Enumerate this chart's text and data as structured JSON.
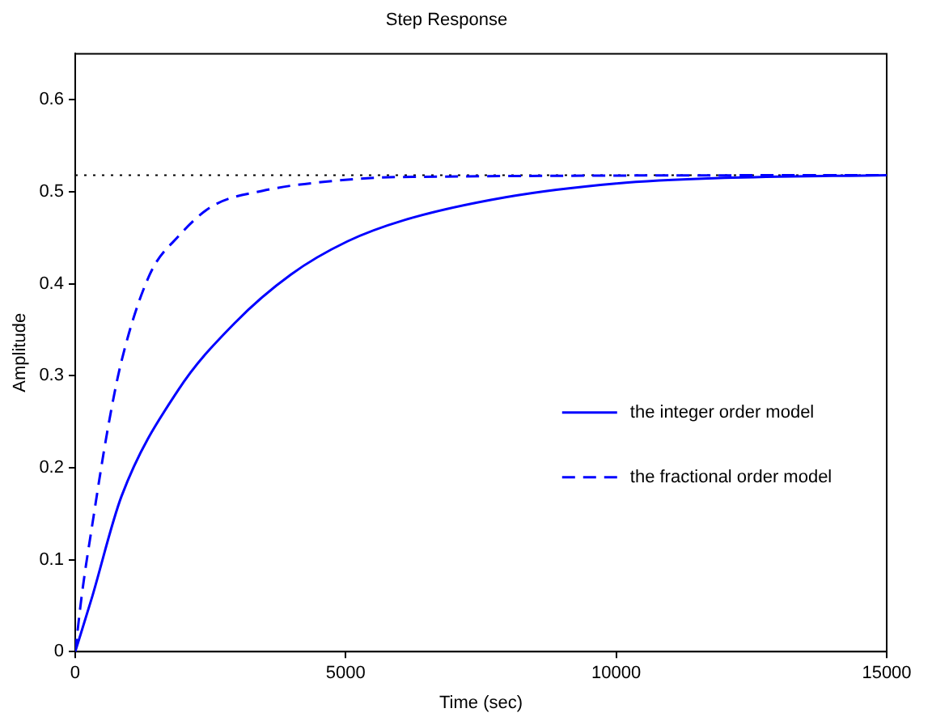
{
  "chart_data": {
    "type": "line",
    "title": "Step Response",
    "xlabel": "Time (sec)",
    "ylabel": "Amplitude",
    "xlim": [
      0,
      15000
    ],
    "xticks": [
      0,
      5000,
      10000,
      15000
    ],
    "ylim": [
      0,
      0.65
    ],
    "yticks": [
      0,
      0.1,
      0.2,
      0.3,
      0.4,
      0.5,
      0.6
    ],
    "grid": false,
    "legend": "right",
    "marker": "none",
    "series": [
      {
        "name": "the integer order model",
        "color": "#0000ff",
        "line_style": "solid",
        "x": [
          0,
          300,
          856,
          1900,
          2944,
          3987,
          5031,
          6075,
          7954,
          10000,
          12000,
          15000
        ],
        "values": [
          0,
          0.057,
          0.169,
          0.284,
          0.357,
          0.41,
          0.446,
          0.469,
          0.494,
          0.509,
          0.515,
          0.518
        ]
      },
      {
        "name": "the fractional order model",
        "color": "#0000ff",
        "line_style": "dashed",
        "x": [
          0,
          125,
          334,
          595,
          856,
          1378,
          1900,
          2526,
          3466,
          4823,
          6000,
          15000
        ],
        "values": [
          0,
          0.063,
          0.145,
          0.24,
          0.316,
          0.41,
          0.451,
          0.484,
          0.501,
          0.512,
          0.516,
          0.518
        ]
      }
    ],
    "ref_lines": [
      {
        "axis": "y",
        "value": 0.518,
        "color": "#000000",
        "line_style": "dotted"
      }
    ]
  }
}
